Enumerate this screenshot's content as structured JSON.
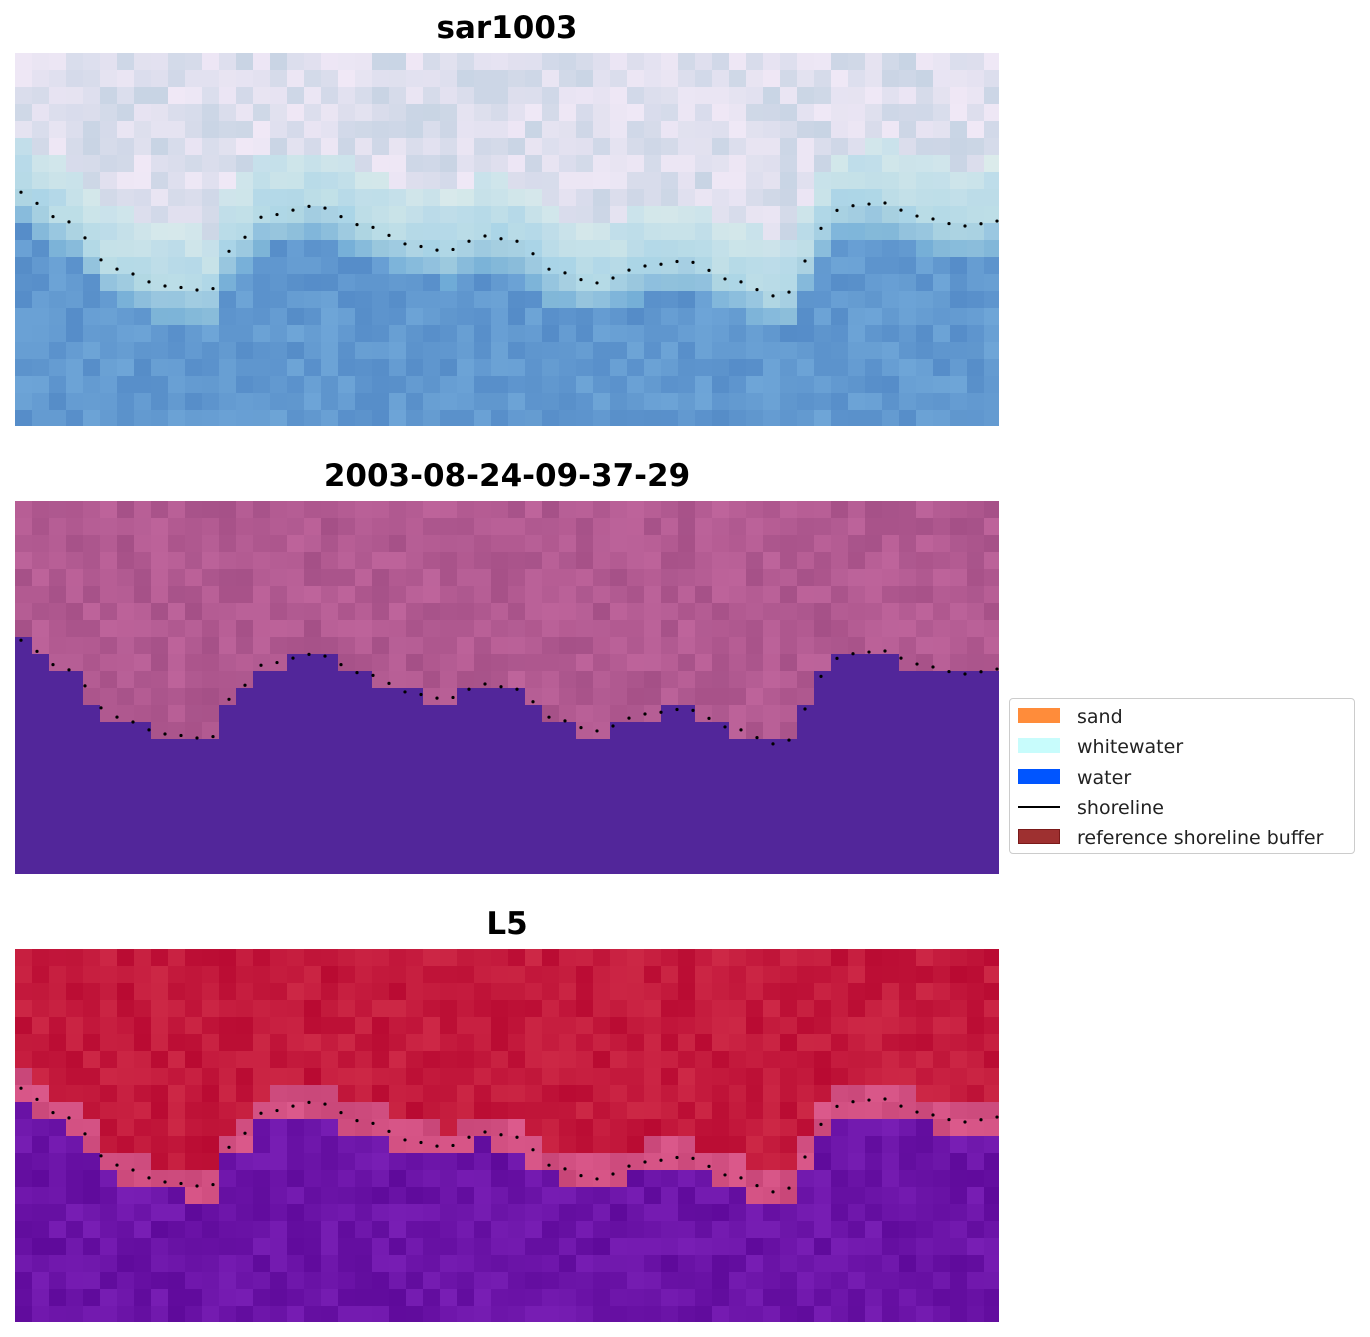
{
  "panels": [
    {
      "title": "sar1003",
      "style": "rgb"
    },
    {
      "title": "2003-08-24-09-37-29",
      "style": "class"
    },
    {
      "title": "L5",
      "style": "index"
    }
  ],
  "legend": {
    "items": [
      {
        "label": "sand",
        "color": "#ff8c3a",
        "kind": "patch"
      },
      {
        "label": "whitewater",
        "color": "#c8fcfc",
        "kind": "patch"
      },
      {
        "label": "water",
        "color": "#0055ff",
        "kind": "patch"
      },
      {
        "label": "shoreline",
        "color": "#000000",
        "kind": "line"
      },
      {
        "label": "reference shoreline buffer",
        "color": "#9e3030",
        "kind": "patch"
      }
    ]
  },
  "colors": {
    "class_land": "#b05c91",
    "class_water": "#52269a",
    "index_land": "#c01f45",
    "index_water": "#6a0fa0"
  }
}
